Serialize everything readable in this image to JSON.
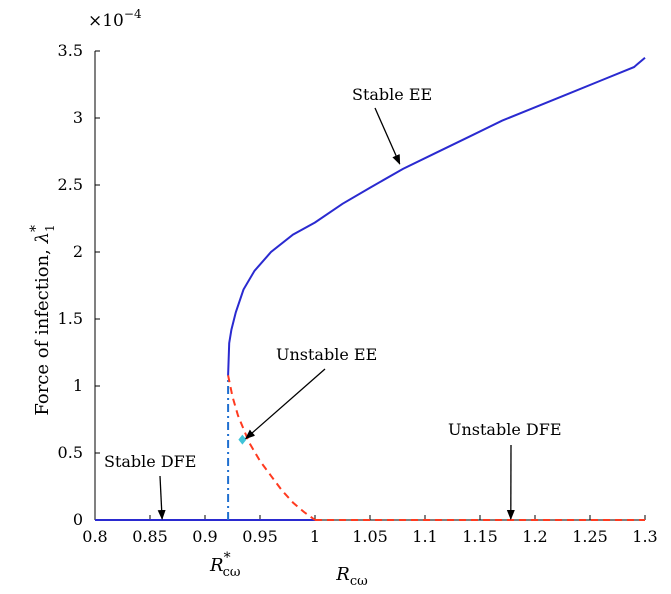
{
  "chart_data": {
    "type": "line",
    "title": "",
    "xlabel": {
      "base": "R",
      "subscript": "cω"
    },
    "ylabel": {
      "prefix": "Force of infection, ",
      "symbol": "λ",
      "superscript": "*",
      "subscript": "1"
    },
    "y_scale_label": {
      "base": "×10",
      "exponent": "−4"
    },
    "xlim": [
      0.8,
      1.3
    ],
    "ylim": [
      0,
      3.5
    ],
    "xticks": [
      0.8,
      0.85,
      0.9,
      0.95,
      1,
      1.05,
      1.1,
      1.15,
      1.2,
      1.25,
      1.3
    ],
    "xtick_labels": [
      "0.8",
      "0.85",
      "0.9",
      "0.95",
      "1",
      "1.05",
      "1.1",
      "1.15",
      "1.2",
      "1.25",
      "1.3"
    ],
    "yticks": [
      0,
      0.5,
      1,
      1.5,
      2,
      2.5,
      3,
      3.5
    ],
    "ytick_labels": [
      "0",
      "0.5",
      "1",
      "1.5",
      "2",
      "2.5",
      "3",
      "3.5"
    ],
    "grid": false,
    "legend": "none",
    "critical_point": {
      "x": 0.921,
      "label": {
        "base": "R",
        "superscript": "*",
        "subscript": "cω"
      }
    },
    "series": [
      {
        "id": "stable-dfe",
        "style": "solid",
        "color": "#2a2ad0",
        "x": [
          0.8,
          1.0
        ],
        "y": [
          0,
          0
        ]
      },
      {
        "id": "unstable-dfe",
        "style": "dashed",
        "color": "#ff3a1f",
        "x": [
          1.0,
          1.3
        ],
        "y": [
          0,
          0
        ]
      },
      {
        "id": "threshold",
        "style": "dashdot",
        "color": "#1f6fd0",
        "x": [
          0.921,
          0.921
        ],
        "y": [
          0,
          1.08
        ]
      },
      {
        "id": "stable-ee",
        "style": "solid",
        "color": "#2a2ad0",
        "x": [
          0.921,
          0.922,
          0.924,
          0.928,
          0.935,
          0.945,
          0.96,
          0.98,
          1.0,
          1.025,
          1.05,
          1.08,
          1.11,
          1.14,
          1.17,
          1.2,
          1.23,
          1.26,
          1.29,
          1.3
        ],
        "y": [
          1.08,
          1.32,
          1.42,
          1.55,
          1.72,
          1.86,
          2.0,
          2.13,
          2.22,
          2.36,
          2.48,
          2.62,
          2.74,
          2.86,
          2.98,
          3.08,
          3.18,
          3.28,
          3.38,
          3.45
        ]
      },
      {
        "id": "unstable-ee",
        "style": "dashed",
        "color": "#ff3a1f",
        "x": [
          0.921,
          0.925,
          0.93,
          0.94,
          0.95,
          0.96,
          0.97,
          0.98,
          0.99,
          1.0
        ],
        "y": [
          1.08,
          0.92,
          0.78,
          0.58,
          0.44,
          0.33,
          0.22,
          0.13,
          0.06,
          0
        ]
      }
    ],
    "marker": {
      "x": 0.934,
      "y": 0.6,
      "color": "#3fc3d8"
    },
    "annotations": [
      {
        "id": "stable-ee",
        "text": "Stable EE",
        "point": [
          1.077,
          2.65
        ]
      },
      {
        "id": "unstable-ee",
        "text": "Unstable EE",
        "point": [
          0.937,
          0.6
        ]
      },
      {
        "id": "stable-dfe",
        "text": "Stable DFE",
        "point": [
          0.861,
          0.0
        ]
      },
      {
        "id": "unstable-dfe",
        "text": "Unstable DFE",
        "point": [
          1.178,
          0.0
        ]
      }
    ]
  }
}
